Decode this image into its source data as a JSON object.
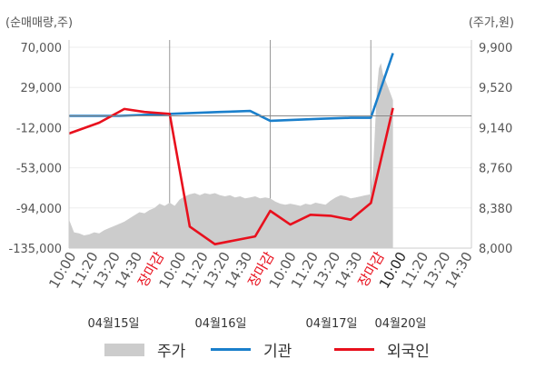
{
  "chart_data": {
    "type": "line",
    "left_axis_title": "(순매매량,주)",
    "right_axis_title": "(주가,원)",
    "y_left": {
      "ticks": [
        "70,000",
        "29,000",
        "-12,000",
        "-53,000",
        "-94,000",
        "-135,000"
      ],
      "tick_values": [
        70000,
        29000,
        -12000,
        -53000,
        -94000,
        -135000
      ],
      "range": [
        -135000,
        70000
      ]
    },
    "y_right": {
      "ticks": [
        "9,900",
        "9,520",
        "9,140",
        "8,760",
        "8,380",
        "8,000"
      ],
      "tick_values": [
        9900,
        9520,
        9140,
        8760,
        8380,
        8000
      ],
      "range": [
        8000,
        9900
      ]
    },
    "x_ticks": [
      "10:00",
      "11:20",
      "13:20",
      "14:30",
      "장마감",
      "10:00",
      "11:20",
      "13:20",
      "14:30",
      "장마감",
      "10:00",
      "11:20",
      "13:20",
      "14:30",
      "장마감",
      "10:00",
      "11:20",
      "13:20",
      "14:30"
    ],
    "x_tick_highlight": [
      false,
      false,
      false,
      false,
      true,
      false,
      false,
      false,
      false,
      true,
      false,
      false,
      false,
      false,
      true,
      true,
      false,
      false,
      false
    ],
    "dates": [
      "04월15일",
      "04월16일",
      "04월17일",
      "04월20일"
    ],
    "sessions": 4,
    "series": [
      {
        "name": "주가",
        "kind": "area",
        "axis": "right",
        "color": "#cccccc",
        "points": [
          [
            0.0,
            8270
          ],
          [
            0.05,
            8150
          ],
          [
            0.1,
            8140
          ],
          [
            0.15,
            8120
          ],
          [
            0.2,
            8130
          ],
          [
            0.25,
            8150
          ],
          [
            0.3,
            8140
          ],
          [
            0.35,
            8170
          ],
          [
            0.4,
            8190
          ],
          [
            0.45,
            8210
          ],
          [
            0.5,
            8230
          ],
          [
            0.55,
            8250
          ],
          [
            0.6,
            8280
          ],
          [
            0.65,
            8310
          ],
          [
            0.7,
            8340
          ],
          [
            0.75,
            8330
          ],
          [
            0.8,
            8360
          ],
          [
            0.85,
            8380
          ],
          [
            0.9,
            8420
          ],
          [
            0.95,
            8400
          ],
          [
            1.0,
            8430
          ],
          [
            1.05,
            8400
          ],
          [
            1.1,
            8460
          ],
          [
            1.15,
            8490
          ],
          [
            1.2,
            8510
          ],
          [
            1.25,
            8520
          ],
          [
            1.3,
            8500
          ],
          [
            1.35,
            8520
          ],
          [
            1.4,
            8510
          ],
          [
            1.45,
            8520
          ],
          [
            1.5,
            8500
          ],
          [
            1.55,
            8490
          ],
          [
            1.6,
            8500
          ],
          [
            1.65,
            8480
          ],
          [
            1.7,
            8490
          ],
          [
            1.75,
            8470
          ],
          [
            1.8,
            8480
          ],
          [
            1.85,
            8490
          ],
          [
            1.9,
            8470
          ],
          [
            1.95,
            8480
          ],
          [
            2.0,
            8470
          ],
          [
            2.05,
            8440
          ],
          [
            2.1,
            8420
          ],
          [
            2.15,
            8410
          ],
          [
            2.2,
            8420
          ],
          [
            2.25,
            8410
          ],
          [
            2.3,
            8400
          ],
          [
            2.35,
            8420
          ],
          [
            2.4,
            8410
          ],
          [
            2.45,
            8430
          ],
          [
            2.5,
            8420
          ],
          [
            2.55,
            8410
          ],
          [
            2.6,
            8450
          ],
          [
            2.65,
            8480
          ],
          [
            2.7,
            8500
          ],
          [
            2.75,
            8490
          ],
          [
            2.8,
            8470
          ],
          [
            2.85,
            8480
          ],
          [
            2.9,
            8490
          ],
          [
            2.95,
            8500
          ],
          [
            3.0,
            8510
          ],
          [
            3.02,
            8700
          ],
          [
            3.04,
            9100
          ],
          [
            3.06,
            9500
          ],
          [
            3.08,
            9700
          ],
          [
            3.1,
            9750
          ],
          [
            3.12,
            9650
          ],
          [
            3.14,
            9600
          ],
          [
            3.16,
            9550
          ],
          [
            3.18,
            9500
          ],
          [
            3.2,
            9450
          ],
          [
            3.22,
            9400
          ]
        ]
      },
      {
        "name": "기관",
        "kind": "line",
        "axis": "left",
        "color": "#1a7fcb",
        "points": [
          [
            0.0,
            0
          ],
          [
            0.5,
            0
          ],
          [
            1.0,
            2000
          ],
          [
            1.5,
            4000
          ],
          [
            1.8,
            5000
          ],
          [
            2.0,
            -5000
          ],
          [
            2.5,
            -3000
          ],
          [
            2.8,
            -2000
          ],
          [
            3.0,
            -2000
          ],
          [
            3.22,
            64000
          ]
        ]
      },
      {
        "name": "외국인",
        "kind": "line",
        "axis": "left",
        "color": "#e8101d",
        "points": [
          [
            0.0,
            -18000
          ],
          [
            0.3,
            -7000
          ],
          [
            0.55,
            7000
          ],
          [
            0.75,
            4000
          ],
          [
            1.0,
            2000
          ],
          [
            1.2,
            -113000
          ],
          [
            1.45,
            -131000
          ],
          [
            1.85,
            -123000
          ],
          [
            2.0,
            -97000
          ],
          [
            2.2,
            -111000
          ],
          [
            2.4,
            -101000
          ],
          [
            2.6,
            -102000
          ],
          [
            2.8,
            -106000
          ],
          [
            3.0,
            -89000
          ],
          [
            3.22,
            8000
          ]
        ]
      }
    ]
  },
  "legend": {
    "price_label": "주가",
    "institution_label": "기관",
    "foreign_label": "외국인"
  }
}
